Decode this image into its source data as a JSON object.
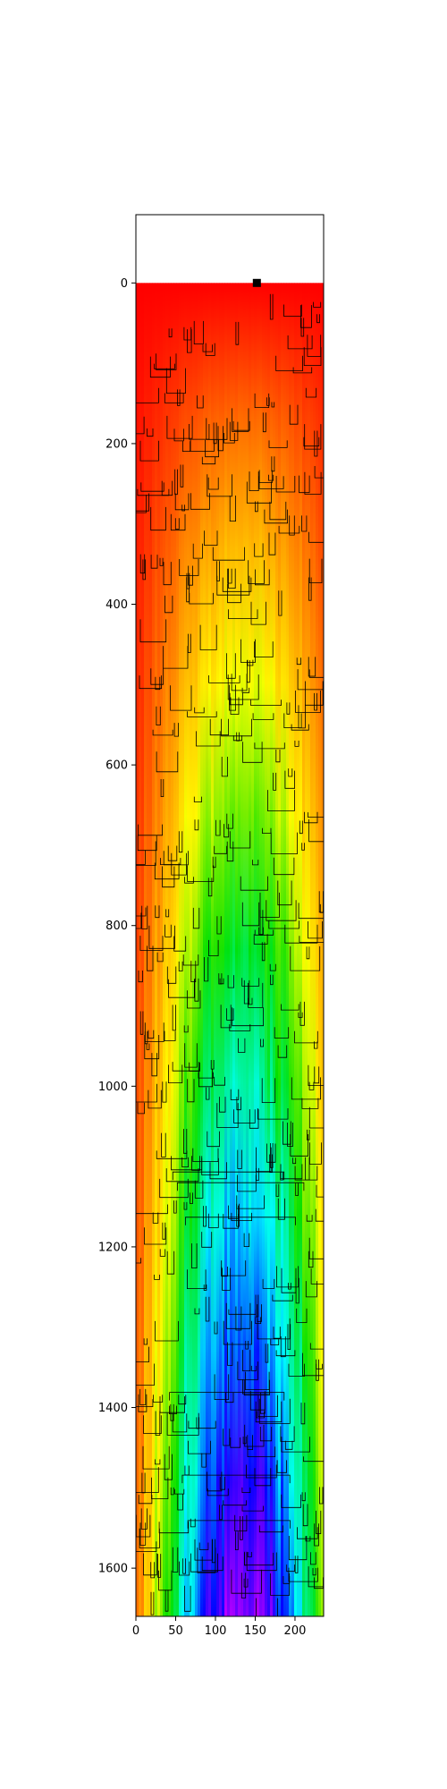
{
  "chart_data": {
    "type": "heatmap",
    "title": "",
    "xlabel": "",
    "ylabel": "",
    "xlim": [
      0,
      236
    ],
    "ylim": [
      1660,
      -85
    ],
    "y_inverted": true,
    "xticks": [
      {
        "value": 0,
        "label": "0"
      },
      {
        "value": 50,
        "label": "50"
      },
      {
        "value": 100,
        "label": "100"
      },
      {
        "value": 150,
        "label": "150"
      },
      {
        "value": 200,
        "label": "200"
      }
    ],
    "yticks": [
      {
        "value": 0,
        "label": "0"
      },
      {
        "value": 200,
        "label": "200"
      },
      {
        "value": 400,
        "label": "400"
      },
      {
        "value": 600,
        "label": "600"
      },
      {
        "value": 800,
        "label": "800"
      },
      {
        "value": 1000,
        "label": "1000"
      },
      {
        "value": 1200,
        "label": "1200"
      },
      {
        "value": 1400,
        "label": "1400"
      },
      {
        "value": 1600,
        "label": "1600"
      }
    ],
    "heatmap_extent": {
      "x": [
        0,
        236
      ],
      "y": [
        0,
        1660
      ]
    },
    "colormap": "red-orange-yellow-green-cyan-blue-purple (depth from top, deepest near centre column)",
    "colormap_stops": [
      "#ff0000",
      "#ff8000",
      "#ffff00",
      "#00e000",
      "#00ffff",
      "#0000ff",
      "#c000ff"
    ],
    "marker": {
      "x": 152,
      "y": 0,
      "shape": "square",
      "color": "#000000"
    },
    "overlay_tree_color": "#000000"
  }
}
